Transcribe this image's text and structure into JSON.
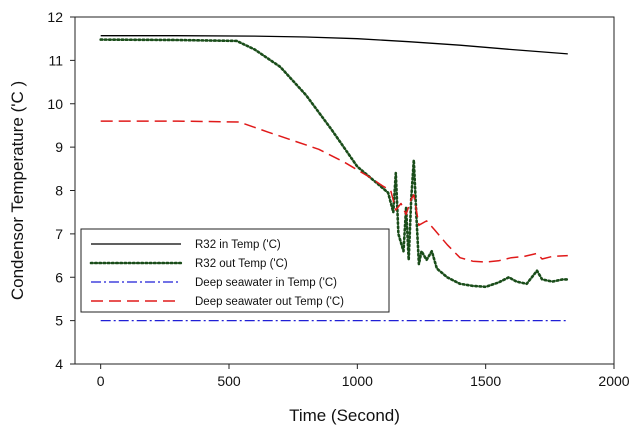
{
  "chart_data": {
    "type": "line",
    "title": "",
    "xlabel": "Time (Second)",
    "ylabel": "Condensor Temperature ('C )",
    "xlim": [
      -100,
      2000
    ],
    "ylim": [
      4,
      12
    ],
    "xticks": [
      0,
      500,
      1000,
      1500,
      2000
    ],
    "yticks": [
      4,
      5,
      6,
      7,
      8,
      9,
      10,
      11,
      12
    ],
    "legend_position": "lower-left",
    "grid": false,
    "series": [
      {
        "name": "R32 in Temp ('C)",
        "color": "#000000",
        "style": "solid",
        "points": [
          [
            0,
            11.57
          ],
          [
            300,
            11.57
          ],
          [
            600,
            11.56
          ],
          [
            800,
            11.54
          ],
          [
            1000,
            11.5
          ],
          [
            1200,
            11.43
          ],
          [
            1400,
            11.35
          ],
          [
            1600,
            11.25
          ],
          [
            1820,
            11.15
          ]
        ]
      },
      {
        "name": "R32 out Temp ('C)",
        "color": "#1a4d1a",
        "style": "dotted",
        "points": [
          [
            0,
            11.48
          ],
          [
            300,
            11.47
          ],
          [
            530,
            11.45
          ],
          [
            600,
            11.25
          ],
          [
            700,
            10.85
          ],
          [
            800,
            10.2
          ],
          [
            900,
            9.4
          ],
          [
            1000,
            8.55
          ],
          [
            1080,
            8.15
          ],
          [
            1120,
            7.95
          ],
          [
            1140,
            7.5
          ],
          [
            1150,
            8.4
          ],
          [
            1160,
            7.0
          ],
          [
            1180,
            6.6
          ],
          [
            1190,
            7.6
          ],
          [
            1200,
            6.4
          ],
          [
            1210,
            7.8
          ],
          [
            1220,
            8.7
          ],
          [
            1230,
            7.4
          ],
          [
            1240,
            6.3
          ],
          [
            1250,
            6.6
          ],
          [
            1270,
            6.4
          ],
          [
            1290,
            6.6
          ],
          [
            1310,
            6.2
          ],
          [
            1350,
            6.0
          ],
          [
            1400,
            5.85
          ],
          [
            1450,
            5.8
          ],
          [
            1500,
            5.78
          ],
          [
            1550,
            5.88
          ],
          [
            1590,
            6.0
          ],
          [
            1620,
            5.9
          ],
          [
            1660,
            5.85
          ],
          [
            1700,
            6.15
          ],
          [
            1720,
            5.95
          ],
          [
            1760,
            5.9
          ],
          [
            1800,
            5.95
          ],
          [
            1820,
            5.95
          ]
        ]
      },
      {
        "name": "Deep seawater in Temp ('C)",
        "color": "#1f1fd6",
        "style": "dashdot",
        "points": [
          [
            0,
            5.0
          ],
          [
            1820,
            5.0
          ]
        ]
      },
      {
        "name": "Deep seawater out Temp ('C)",
        "color": "#e01a1a",
        "style": "dashed",
        "points": [
          [
            0,
            9.6
          ],
          [
            300,
            9.6
          ],
          [
            540,
            9.58
          ],
          [
            650,
            9.35
          ],
          [
            750,
            9.15
          ],
          [
            850,
            8.95
          ],
          [
            950,
            8.65
          ],
          [
            1050,
            8.3
          ],
          [
            1100,
            8.1
          ],
          [
            1130,
            8.0
          ],
          [
            1150,
            7.55
          ],
          [
            1170,
            7.7
          ],
          [
            1190,
            7.45
          ],
          [
            1210,
            7.8
          ],
          [
            1220,
            7.9
          ],
          [
            1240,
            7.2
          ],
          [
            1270,
            7.3
          ],
          [
            1300,
            7.1
          ],
          [
            1350,
            6.75
          ],
          [
            1400,
            6.45
          ],
          [
            1450,
            6.37
          ],
          [
            1500,
            6.35
          ],
          [
            1550,
            6.38
          ],
          [
            1600,
            6.45
          ],
          [
            1650,
            6.48
          ],
          [
            1700,
            6.55
          ],
          [
            1720,
            6.42
          ],
          [
            1760,
            6.48
          ],
          [
            1820,
            6.5
          ]
        ]
      }
    ]
  }
}
